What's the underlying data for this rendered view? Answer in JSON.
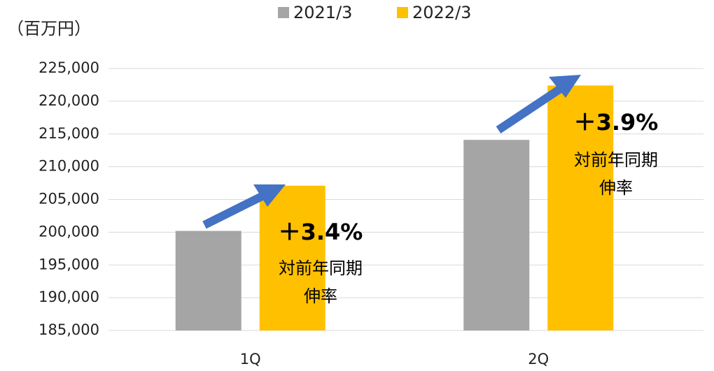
{
  "chart_data": {
    "type": "bar",
    "unit_label": "（百万円）",
    "categories": [
      "1Q",
      "2Q"
    ],
    "series": [
      {
        "name": "2021/3",
        "color": "#a5a5a5",
        "values": [
          200200,
          214100
        ]
      },
      {
        "name": "2022/3",
        "color": "#ffc000",
        "values": [
          207100,
          222400
        ]
      }
    ],
    "ylim": [
      185000,
      225000
    ],
    "yticks": [
      {
        "value": 185000,
        "label": "185,000"
      },
      {
        "value": 190000,
        "label": "190,000"
      },
      {
        "value": 195000,
        "label": "195,000"
      },
      {
        "value": 200000,
        "label": "200,000"
      },
      {
        "value": 205000,
        "label": "205,000"
      },
      {
        "value": 210000,
        "label": "210,000"
      },
      {
        "value": 215000,
        "label": "215,000"
      },
      {
        "value": 220000,
        "label": "220,000"
      },
      {
        "value": 225000,
        "label": "225,000"
      }
    ],
    "grid": true,
    "legend": "top",
    "annotations": [
      "＋3.4%",
      "対前年同期",
      "伸率",
      "＋3.9%",
      "対前年同期",
      "伸率"
    ]
  }
}
